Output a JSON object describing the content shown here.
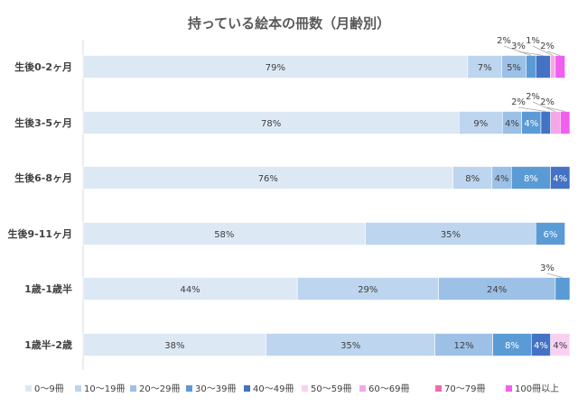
{
  "chart_data": {
    "type": "bar",
    "orientation": "horizontal",
    "stacked": true,
    "title": "持っている絵本の冊数（月齢別）",
    "xlabel": "",
    "ylabel": "",
    "xlim": [
      0,
      100
    ],
    "legend_position": "bottom",
    "categories": [
      "生後0-2ヶ月",
      "生後3-5ヶ月",
      "生後6-8ヶ月",
      "生後9-11ヶ月",
      "1歳-1歳半",
      "1歳半-2歳"
    ],
    "series": [
      {
        "name": "0～9冊",
        "color": "#dde8f5",
        "values": [
          79,
          78,
          76,
          58,
          44,
          38
        ],
        "labels": [
          "79%",
          "78%",
          "76%",
          "58%",
          "44%",
          "38%"
        ]
      },
      {
        "name": "10～19冊",
        "color": "#bdd5ee",
        "values": [
          7,
          9,
          8,
          35,
          29,
          35
        ],
        "labels": [
          "7%",
          "9%",
          "8%",
          "35%",
          "29%",
          "35%"
        ]
      },
      {
        "name": "20～29冊",
        "color": "#9cc0e6",
        "values": [
          5,
          4,
          4,
          0,
          24,
          12
        ],
        "labels": [
          "5%",
          "4%",
          "4%",
          "",
          "24%",
          "12%"
        ]
      },
      {
        "name": "30～39冊",
        "color": "#5b9bd5",
        "values": [
          2,
          4,
          8,
          6,
          3,
          8
        ],
        "labels": [
          "2%",
          "4%",
          "8%",
          "6%",
          "3%",
          "8%"
        ]
      },
      {
        "name": "40～49冊",
        "color": "#4472c4",
        "values": [
          3,
          2,
          4,
          0,
          0,
          4
        ],
        "labels": [
          "3%",
          "2%",
          "4%",
          "",
          "",
          "4%"
        ]
      },
      {
        "name": "50～59冊",
        "color": "#f9d0f2",
        "values": [
          0,
          0,
          0,
          0,
          0,
          4
        ],
        "labels": [
          "",
          "",
          "",
          "",
          "",
          "4%"
        ]
      },
      {
        "name": "60～69冊",
        "color": "#f5a8e6",
        "values": [
          1,
          2,
          0,
          0,
          0,
          0
        ],
        "labels": [
          "1%",
          "2%",
          "",
          "",
          "",
          ""
        ]
      },
      {
        "name": "70～79冊",
        "color": "#f06ab0",
        "values": [
          0,
          0,
          0,
          0,
          0,
          0
        ],
        "labels": [
          "",
          "",
          "",
          "",
          "",
          ""
        ]
      },
      {
        "name": "100冊以上",
        "color": "#f060ee",
        "values": [
          2,
          2,
          0,
          0,
          0,
          0
        ],
        "labels": [
          "2%",
          "2%",
          "",
          "",
          "",
          ""
        ]
      }
    ]
  }
}
